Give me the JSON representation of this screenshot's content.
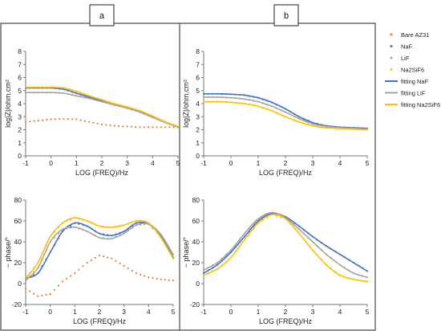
{
  "panel_labels": {
    "a": "a",
    "b": "b"
  },
  "legend": {
    "entries": [
      {
        "label": "Bare AZ31",
        "kind": "marker",
        "color": "#ed7d31"
      },
      {
        "label": "NaF",
        "kind": "marker",
        "color": "#4472c4"
      },
      {
        "label": "LiF",
        "kind": "marker",
        "color": "#a5a5a5"
      },
      {
        "label": "Na2SiF6",
        "kind": "marker",
        "color": "#ffc000"
      },
      {
        "label": "fitting NaF",
        "kind": "line",
        "color": "#4472c4"
      },
      {
        "label": "fitting LiF",
        "kind": "line",
        "color": "#a5a5a5"
      },
      {
        "label": "fitting Na2SiF6",
        "kind": "line",
        "color": "#ffc000"
      }
    ]
  },
  "chart_data": [
    {
      "id": "a-top",
      "type": "line",
      "xlabel": "LOG (FREQ)/Hz",
      "ylabel": "log|Z|/ohm.cm²",
      "xlim": [
        -1,
        5
      ],
      "ylim": [
        0,
        8
      ],
      "xticks": [
        -1,
        0,
        1,
        2,
        3,
        4,
        5
      ],
      "yticks": [
        0,
        1,
        2,
        3,
        4,
        5,
        6,
        7,
        8
      ],
      "grid": false,
      "series": [
        {
          "name": "Bare AZ31",
          "style": "marker",
          "color": "#ed7d31",
          "x": [
            -1,
            -0.5,
            0,
            0.5,
            1,
            1.5,
            2,
            2.5,
            3,
            3.5,
            4,
            4.5,
            5
          ],
          "y": [
            2.6,
            2.7,
            2.8,
            2.85,
            2.8,
            2.6,
            2.4,
            2.3,
            2.25,
            2.2,
            2.2,
            2.2,
            2.2
          ]
        },
        {
          "name": "NaF",
          "style": "marker",
          "color": "#4472c4",
          "x": [
            -1,
            -0.5,
            0,
            0.5,
            1,
            1.5,
            2,
            2.5,
            3,
            3.5,
            4,
            4.5,
            5
          ],
          "y": [
            5.2,
            5.2,
            5.2,
            5.1,
            4.8,
            4.5,
            4.2,
            3.9,
            3.7,
            3.4,
            3.0,
            2.6,
            2.2
          ]
        },
        {
          "name": "LiF",
          "style": "marker",
          "color": "#a5a5a5",
          "x": [
            -1,
            -0.5,
            0,
            0.5,
            1,
            1.5,
            2,
            2.5,
            3,
            3.5,
            4,
            4.5,
            5
          ],
          "y": [
            4.85,
            4.85,
            4.85,
            4.8,
            4.6,
            4.4,
            4.15,
            3.9,
            3.65,
            3.35,
            2.95,
            2.55,
            2.2
          ]
        },
        {
          "name": "Na2SiF6",
          "style": "marker",
          "color": "#ffc000",
          "x": [
            -1,
            -0.5,
            0,
            0.5,
            1,
            1.5,
            2,
            2.5,
            3,
            3.5,
            4,
            4.5,
            5
          ],
          "y": [
            5.25,
            5.25,
            5.25,
            5.2,
            4.95,
            4.6,
            4.3,
            4.0,
            3.75,
            3.45,
            3.05,
            2.6,
            2.25
          ]
        },
        {
          "name": "fitting NaF",
          "style": "line",
          "color": "#4472c4",
          "x": [
            -1,
            -0.5,
            0,
            0.5,
            1,
            1.5,
            2,
            2.5,
            3,
            3.5,
            4,
            4.5,
            5
          ],
          "y": [
            5.2,
            5.2,
            5.2,
            5.1,
            4.8,
            4.5,
            4.2,
            3.9,
            3.7,
            3.4,
            3.0,
            2.6,
            2.2
          ]
        },
        {
          "name": "fitting LiF",
          "style": "line",
          "color": "#a5a5a5",
          "x": [
            -1,
            -0.5,
            0,
            0.5,
            1,
            1.5,
            2,
            2.5,
            3,
            3.5,
            4,
            4.5,
            5
          ],
          "y": [
            4.85,
            4.85,
            4.85,
            4.8,
            4.6,
            4.4,
            4.15,
            3.9,
            3.65,
            3.35,
            2.95,
            2.55,
            2.2
          ]
        },
        {
          "name": "fitting Na2SiF6",
          "style": "line",
          "color": "#ffc000",
          "x": [
            -1,
            -0.5,
            0,
            0.5,
            1,
            1.5,
            2,
            2.5,
            3,
            3.5,
            4,
            4.5,
            5
          ],
          "y": [
            5.25,
            5.25,
            5.25,
            5.2,
            4.95,
            4.6,
            4.3,
            4.0,
            3.75,
            3.45,
            3.05,
            2.6,
            2.25
          ]
        }
      ]
    },
    {
      "id": "a-bottom",
      "type": "line",
      "xlabel": "LOG (FREQ)/Hz",
      "ylabel": "− phase/°",
      "xlim": [
        -1,
        5
      ],
      "ylim": [
        -20,
        80
      ],
      "xticks": [
        -1,
        0,
        1,
        2,
        3,
        4,
        5
      ],
      "yticks": [
        -20,
        0,
        20,
        40,
        60,
        80
      ],
      "grid": false,
      "series": [
        {
          "name": "Bare AZ31",
          "style": "marker",
          "color": "#ed7d31",
          "x": [
            -1,
            -0.5,
            0,
            0.5,
            1,
            1.5,
            2,
            2.5,
            3,
            3.5,
            4,
            4.5,
            5
          ],
          "y": [
            -5,
            -12,
            -10,
            2,
            10,
            20,
            27,
            24,
            17,
            10,
            6,
            4,
            3
          ]
        },
        {
          "name": "NaF",
          "style": "marker",
          "color": "#4472c4",
          "x": [
            -1,
            -0.5,
            0,
            0.5,
            1,
            1.5,
            2,
            2.5,
            3,
            3.5,
            4,
            4.5,
            5
          ],
          "y": [
            5,
            10,
            30,
            50,
            58,
            55,
            48,
            46,
            50,
            58,
            57,
            45,
            25
          ]
        },
        {
          "name": "LiF",
          "style": "marker",
          "color": "#a5a5a5",
          "x": [
            -1,
            -0.5,
            0,
            0.5,
            1,
            1.5,
            2,
            2.5,
            3,
            3.5,
            4,
            4.5,
            5
          ],
          "y": [
            3,
            15,
            40,
            52,
            54,
            50,
            44,
            43,
            48,
            56,
            57,
            47,
            28
          ]
        },
        {
          "name": "Na2SiF6",
          "style": "marker",
          "color": "#ffc000",
          "x": [
            -1,
            -0.5,
            0,
            0.5,
            1,
            1.5,
            2,
            2.5,
            3,
            3.5,
            4,
            4.5,
            5
          ],
          "y": [
            5,
            20,
            45,
            58,
            63,
            60,
            55,
            54,
            56,
            60,
            58,
            44,
            24
          ]
        },
        {
          "name": "fitting NaF",
          "style": "line",
          "color": "#4472c4",
          "x": [
            -1,
            -0.5,
            0,
            0.5,
            1,
            1.5,
            2,
            2.5,
            3,
            3.5,
            4,
            4.5,
            5
          ],
          "y": [
            5,
            10,
            30,
            50,
            58,
            55,
            48,
            46,
            50,
            58,
            57,
            45,
            25
          ]
        },
        {
          "name": "fitting LiF",
          "style": "line",
          "color": "#a5a5a5",
          "x": [
            -1,
            -0.5,
            0,
            0.5,
            1,
            1.5,
            2,
            2.5,
            3,
            3.5,
            4,
            4.5,
            5
          ],
          "y": [
            3,
            15,
            40,
            52,
            54,
            50,
            44,
            43,
            48,
            56,
            57,
            47,
            28
          ]
        },
        {
          "name": "fitting Na2SiF6",
          "style": "line",
          "color": "#ffc000",
          "x": [
            -1,
            -0.5,
            0,
            0.5,
            1,
            1.5,
            2,
            2.5,
            3,
            3.5,
            4,
            4.5,
            5
          ],
          "y": [
            5,
            20,
            45,
            58,
            63,
            60,
            55,
            54,
            56,
            60,
            58,
            44,
            24
          ]
        }
      ]
    },
    {
      "id": "b-top",
      "type": "line",
      "xlabel": "LOG (FREQ)/Hz",
      "ylabel": "log|Z|/ohm.cm²",
      "xlim": [
        -1,
        5
      ],
      "ylim": [
        0,
        8
      ],
      "xticks": [
        -1,
        0,
        1,
        2,
        3,
        4,
        5
      ],
      "yticks": [
        0,
        1,
        2,
        3,
        4,
        5,
        6,
        7,
        8
      ],
      "grid": false,
      "series": [
        {
          "name": "NaF",
          "style": "marker",
          "color": "#4472c4",
          "x": [
            -1,
            -0.5,
            0,
            0.5,
            1,
            1.5,
            2,
            2.5,
            3,
            3.5,
            4,
            4.5,
            5
          ],
          "y": [
            4.75,
            4.75,
            4.72,
            4.65,
            4.45,
            4.1,
            3.6,
            3.0,
            2.55,
            2.3,
            2.2,
            2.15,
            2.1
          ]
        },
        {
          "name": "LiF",
          "style": "marker",
          "color": "#a5a5a5",
          "x": [
            -1,
            -0.5,
            0,
            0.5,
            1,
            1.5,
            2,
            2.5,
            3,
            3.5,
            4,
            4.5,
            5
          ],
          "y": [
            4.5,
            4.5,
            4.45,
            4.35,
            4.15,
            3.8,
            3.35,
            2.85,
            2.45,
            2.25,
            2.15,
            2.1,
            2.05
          ]
        },
        {
          "name": "Na2SiF6",
          "style": "marker",
          "color": "#ffc000",
          "x": [
            -1,
            -0.5,
            0,
            0.5,
            1,
            1.5,
            2,
            2.5,
            3,
            3.5,
            4,
            4.5,
            5
          ],
          "y": [
            4.15,
            4.15,
            4.1,
            4.0,
            3.8,
            3.45,
            3.0,
            2.6,
            2.3,
            2.15,
            2.1,
            2.05,
            2.0
          ]
        },
        {
          "name": "fitting NaF",
          "style": "line",
          "color": "#4472c4",
          "x": [
            -1,
            -0.5,
            0,
            0.5,
            1,
            1.5,
            2,
            2.5,
            3,
            3.5,
            4,
            4.5,
            5
          ],
          "y": [
            4.75,
            4.75,
            4.72,
            4.65,
            4.45,
            4.1,
            3.6,
            3.0,
            2.55,
            2.3,
            2.2,
            2.15,
            2.1
          ]
        },
        {
          "name": "fitting LiF",
          "style": "line",
          "color": "#a5a5a5",
          "x": [
            -1,
            -0.5,
            0,
            0.5,
            1,
            1.5,
            2,
            2.5,
            3,
            3.5,
            4,
            4.5,
            5
          ],
          "y": [
            4.5,
            4.5,
            4.45,
            4.35,
            4.15,
            3.8,
            3.35,
            2.85,
            2.45,
            2.25,
            2.15,
            2.1,
            2.05
          ]
        },
        {
          "name": "fitting Na2SiF6",
          "style": "line",
          "color": "#ffc000",
          "x": [
            -1,
            -0.5,
            0,
            0.5,
            1,
            1.5,
            2,
            2.5,
            3,
            3.5,
            4,
            4.5,
            5
          ],
          "y": [
            4.15,
            4.15,
            4.1,
            4.0,
            3.8,
            3.45,
            3.0,
            2.6,
            2.3,
            2.15,
            2.1,
            2.05,
            2.0
          ]
        }
      ]
    },
    {
      "id": "b-bottom",
      "type": "line",
      "xlabel": "LOG (FREQ)/Hz",
      "ylabel": "− phase/°",
      "xlim": [
        -1,
        5
      ],
      "ylim": [
        -20,
        80
      ],
      "xticks": [
        -1,
        0,
        1,
        2,
        3,
        4,
        5
      ],
      "yticks": [
        -20,
        0,
        20,
        40,
        60,
        80
      ],
      "grid": false,
      "series": [
        {
          "name": "NaF",
          "style": "marker",
          "color": "#4472c4",
          "x": [
            -1,
            -0.5,
            0,
            0.5,
            1,
            1.5,
            2,
            2.5,
            3,
            3.5,
            4,
            4.5,
            5
          ],
          "y": [
            10,
            18,
            30,
            45,
            60,
            67,
            64,
            55,
            45,
            36,
            28,
            20,
            12
          ]
        },
        {
          "name": "LiF",
          "style": "marker",
          "color": "#a5a5a5",
          "x": [
            -1,
            -0.5,
            0,
            0.5,
            1,
            1.5,
            2,
            2.5,
            3,
            3.5,
            4,
            4.5,
            5
          ],
          "y": [
            13,
            20,
            32,
            48,
            62,
            68,
            63,
            52,
            40,
            28,
            18,
            10,
            6
          ]
        },
        {
          "name": "Na2SiF6",
          "style": "marker",
          "color": "#ffc000",
          "x": [
            -1,
            -0.5,
            0,
            0.5,
            1,
            1.5,
            2,
            2.5,
            3,
            3.5,
            4,
            4.5,
            5
          ],
          "y": [
            8,
            14,
            25,
            42,
            58,
            66,
            62,
            48,
            32,
            18,
            8,
            4,
            2
          ]
        },
        {
          "name": "fitting NaF",
          "style": "line",
          "color": "#4472c4",
          "x": [
            -1,
            -0.5,
            0,
            0.5,
            1,
            1.5,
            2,
            2.5,
            3,
            3.5,
            4,
            4.5,
            5
          ],
          "y": [
            10,
            18,
            30,
            45,
            60,
            67,
            64,
            55,
            45,
            36,
            28,
            20,
            12
          ]
        },
        {
          "name": "fitting LiF",
          "style": "line",
          "color": "#a5a5a5",
          "x": [
            -1,
            -0.5,
            0,
            0.5,
            1,
            1.5,
            2,
            2.5,
            3,
            3.5,
            4,
            4.5,
            5
          ],
          "y": [
            13,
            20,
            32,
            48,
            62,
            68,
            63,
            52,
            40,
            28,
            18,
            10,
            6
          ]
        },
        {
          "name": "fitting Na2SiF6",
          "style": "line",
          "color": "#ffc000",
          "x": [
            -1,
            -0.5,
            0,
            0.5,
            1,
            1.5,
            2,
            2.5,
            3,
            3.5,
            4,
            4.5,
            5
          ],
          "y": [
            8,
            14,
            25,
            42,
            58,
            66,
            62,
            48,
            32,
            18,
            8,
            4,
            2
          ]
        }
      ]
    }
  ]
}
